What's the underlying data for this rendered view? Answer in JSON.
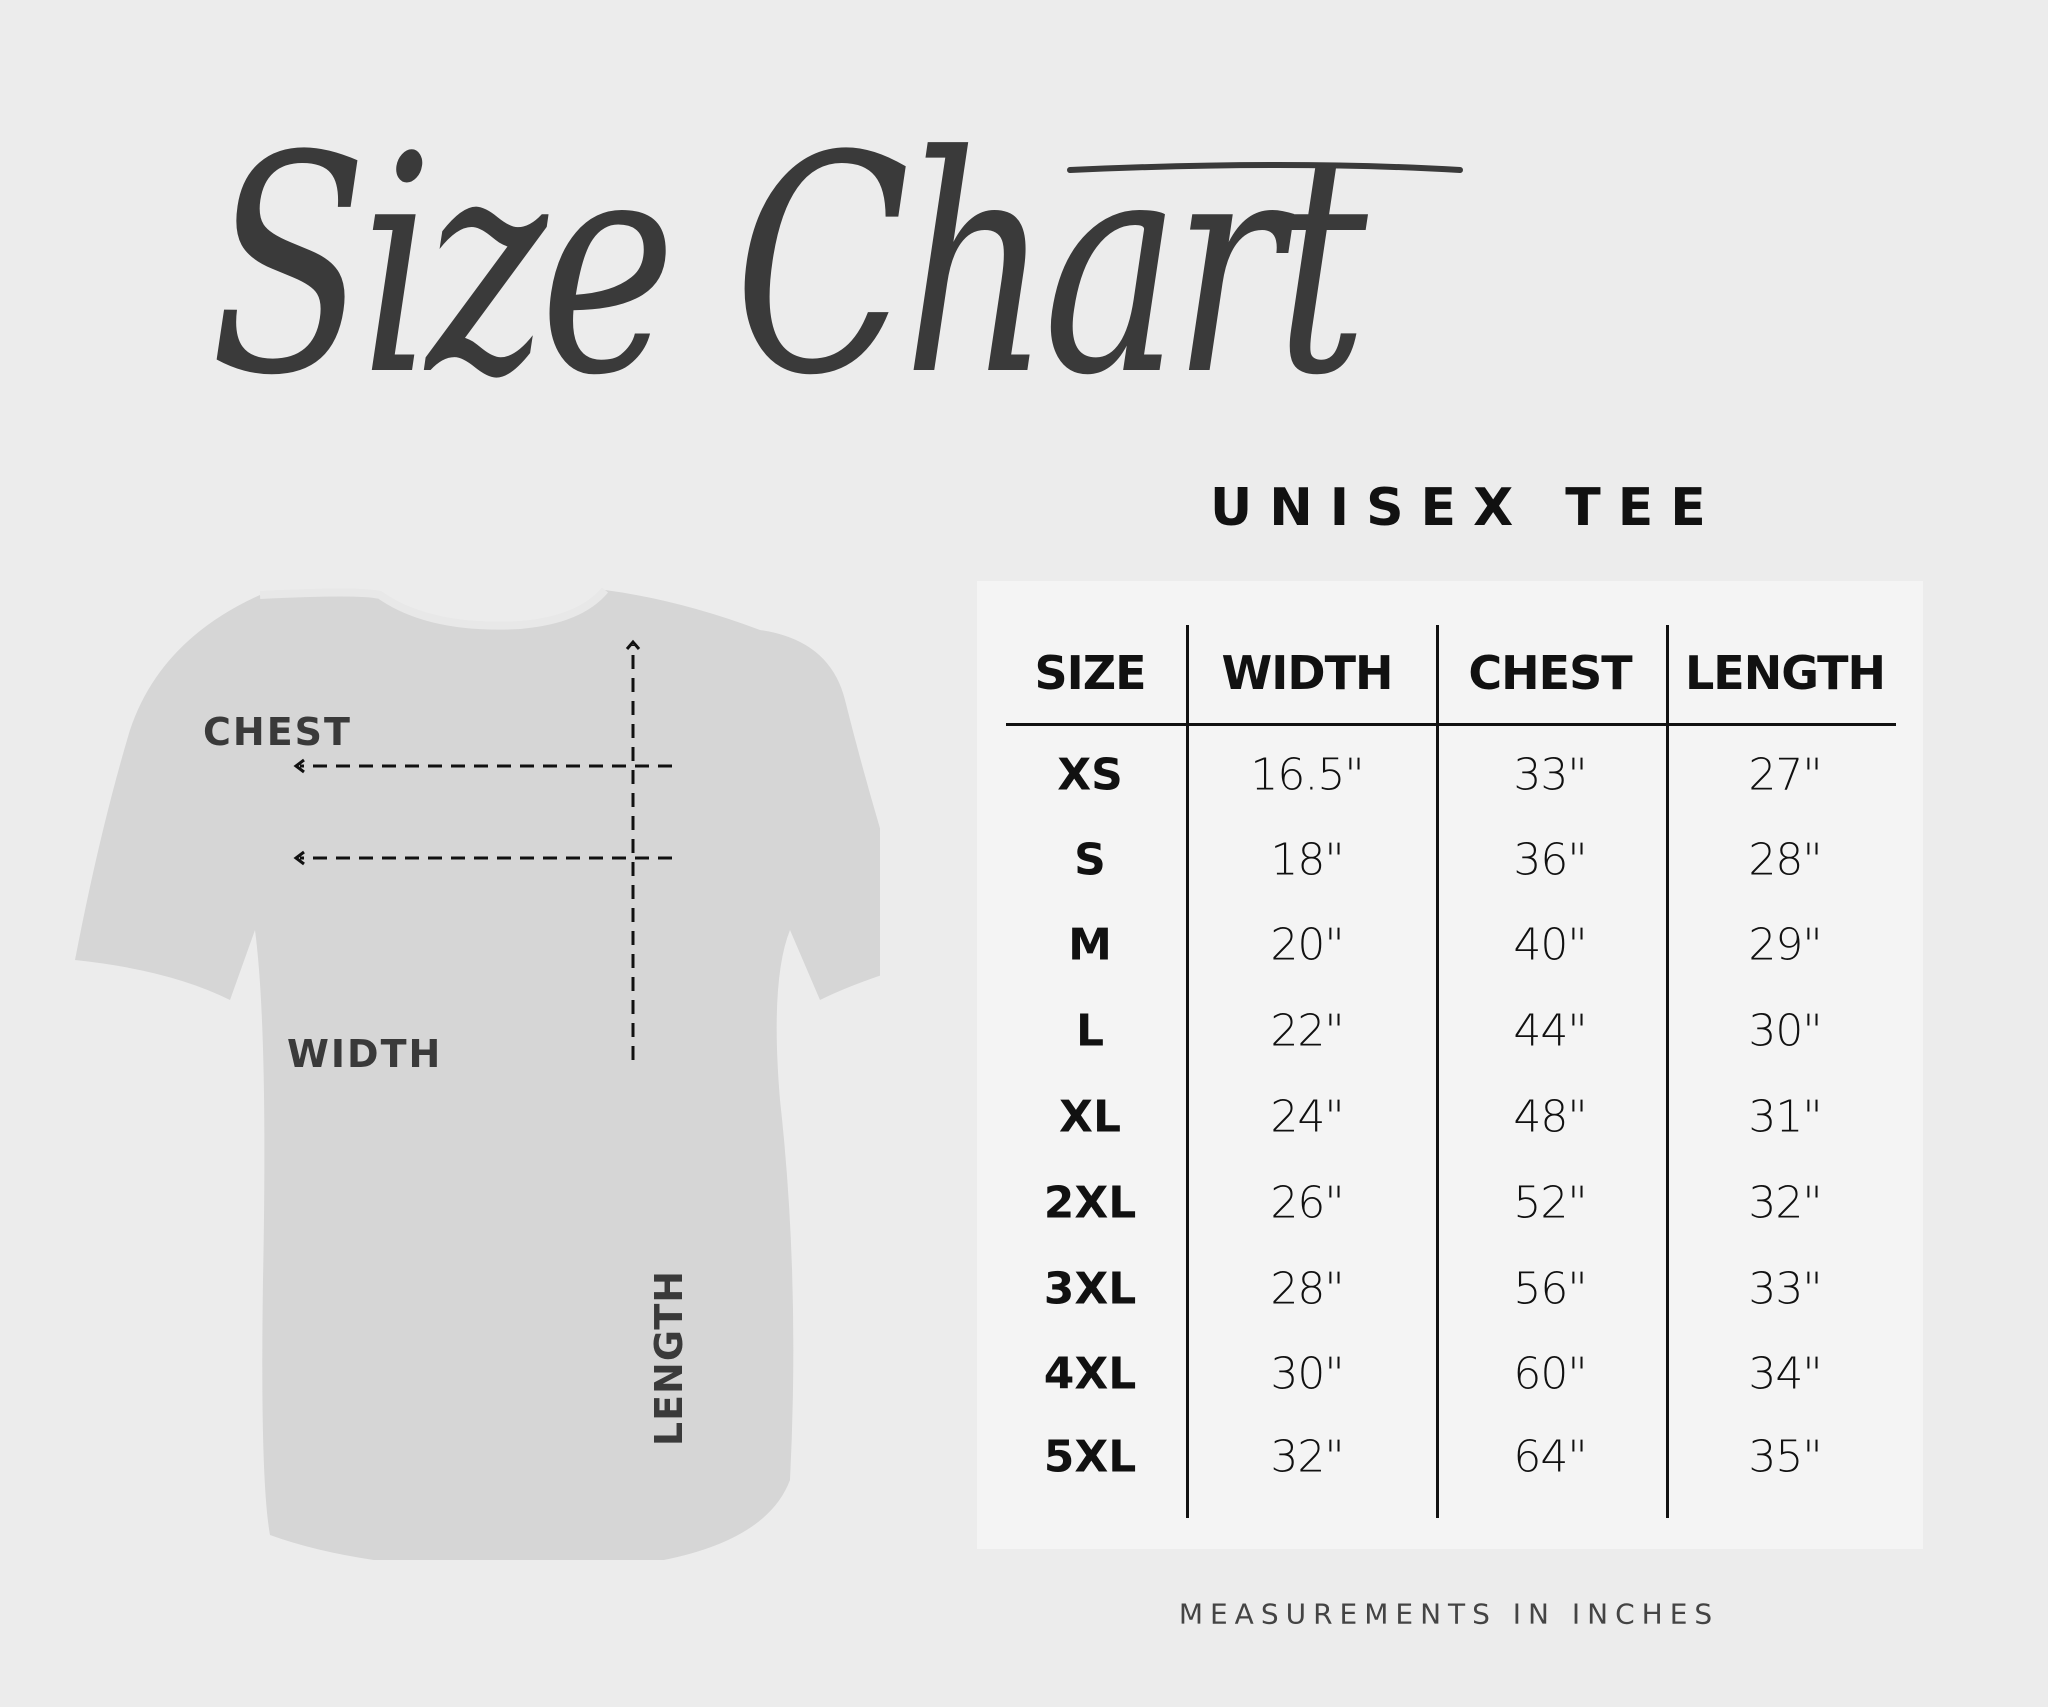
{
  "title": "Size Chart",
  "subtitle": "UNISEX TEE",
  "diagram": {
    "labels": {
      "chest": "CHEST",
      "width": "WIDTH",
      "length": "LENGTH"
    },
    "shirt_color": "#d6d6d6",
    "ink_color": "#3a3a3a"
  },
  "table": {
    "headers": [
      "SIZE",
      "WIDTH",
      "CHEST",
      "LENGTH"
    ],
    "rows": [
      [
        "XS",
        "16.5\"",
        "33\"",
        "27\""
      ],
      [
        "S",
        "18\"",
        "36\"",
        "28\""
      ],
      [
        "M",
        "20\"",
        "40\"",
        "29\""
      ],
      [
        "L",
        "22\"",
        "44\"",
        "30\""
      ],
      [
        "XL",
        "24\"",
        "48\"",
        "31\""
      ],
      [
        "2XL",
        "26\"",
        "52\"",
        "32\""
      ],
      [
        "3XL",
        "28\"",
        "56\"",
        "33\""
      ],
      [
        "4XL",
        "30\"",
        "60\"",
        "34\""
      ],
      [
        "5XL",
        "32\"",
        "64\"",
        "35\""
      ]
    ]
  },
  "footnote": "MEASUREMENTS IN INCHES",
  "colors": {
    "background": "#ececec",
    "panel": "#f4f4f4",
    "text": "#111111"
  }
}
